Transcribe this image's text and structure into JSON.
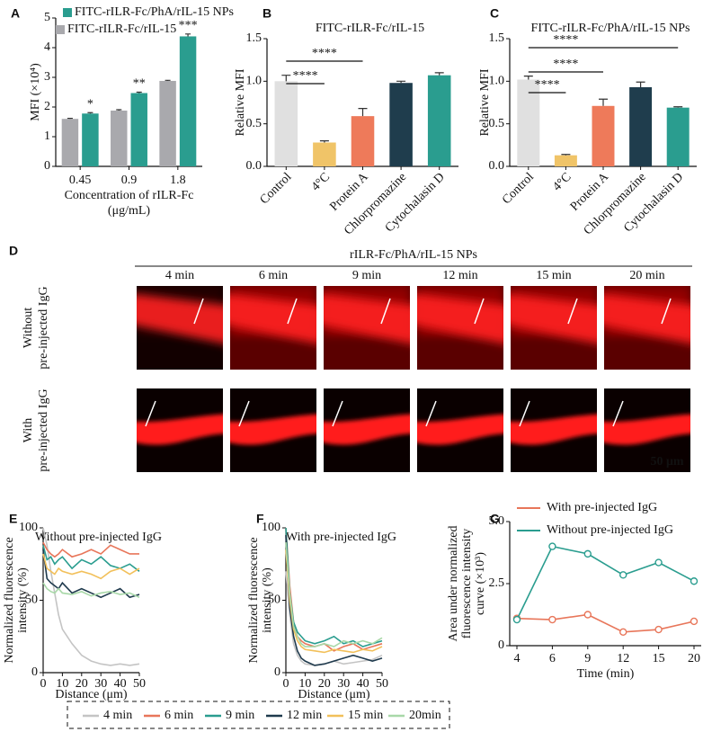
{
  "chart_data": [
    {
      "panel": "A",
      "type": "bar",
      "categories": [
        "0.45",
        "0.9",
        "1.8"
      ],
      "series": [
        {
          "name": "FITC-rILR-Fc/rIL-15",
          "color": "#a9a9ad",
          "values": [
            1.6,
            1.88,
            2.88
          ],
          "errors": [
            0.02,
            0.03,
            0.02
          ]
        },
        {
          "name": "FITC-rILR-Fc/PhA/rIL-15 NPs",
          "color": "#2a9d8f",
          "values": [
            1.78,
            2.47,
            4.38
          ],
          "errors": [
            0.03,
            0.03,
            0.08
          ]
        }
      ],
      "annotations": [
        "*",
        "**",
        "***"
      ],
      "ylabel": [
        "MFI (×10⁴)"
      ],
      "xlabel": [
        "Concentration of rILR-Fc",
        "(μg/mL)"
      ],
      "ylim": [
        0,
        5
      ],
      "yticks": [
        0,
        1,
        2,
        3,
        4,
        5
      ]
    },
    {
      "panel": "B",
      "type": "bar",
      "title": "FITC-rILR-Fc/rIL-15",
      "categories": [
        "Control",
        "4°C",
        "Protein A",
        "Chlorpromazine",
        "Cytochalasin D"
      ],
      "values": [
        1.0,
        0.28,
        0.59,
        0.98,
        1.07
      ],
      "errors": [
        0.07,
        0.02,
        0.09,
        0.02,
        0.03
      ],
      "colors": [
        "#e0e0e0",
        "#f0c468",
        "#ee7a5a",
        "#1f3d4d",
        "#2a9d8f"
      ],
      "annotations": [
        "****",
        "****"
      ],
      "ylabel": [
        "Relative MFI"
      ],
      "ylim": [
        0,
        1.5
      ],
      "yticks": [
        {
          "value": 0,
          "label": "0.0"
        },
        0.5,
        {
          "value": 1,
          "label": "1.0"
        },
        1.5
      ]
    },
    {
      "panel": "C",
      "type": "bar",
      "title": "FITC-rILR-Fc/PhA/rIL-15 NPs",
      "categories": [
        "Control",
        "4°C",
        "Protein A",
        "Chlorpromazine",
        "Cytochalasin D"
      ],
      "values": [
        1.02,
        0.13,
        0.71,
        0.93,
        0.69
      ],
      "errors": [
        0.04,
        0.01,
        0.08,
        0.06,
        0.01
      ],
      "colors": [
        "#e0e0e0",
        "#f0c468",
        "#ee7a5a",
        "#1f3d4d",
        "#2a9d8f"
      ],
      "annotations": [
        "****",
        "****",
        "****"
      ],
      "ylabel": [
        "Relative MFI"
      ],
      "ylim": [
        0,
        1.5
      ],
      "yticks": [
        {
          "value": 0,
          "label": "0.0"
        },
        0.5,
        {
          "value": 1,
          "label": "1.0"
        },
        1.5
      ]
    },
    {
      "panel": "E",
      "type": "line",
      "title": "Without pre-injected IgG",
      "x": [
        0,
        2,
        4,
        6,
        8,
        10,
        15,
        20,
        25,
        30,
        35,
        40,
        45,
        50
      ],
      "series": [
        {
          "name": "4 min",
          "color": "#c4c4c4",
          "values": [
            100,
            88,
            70,
            55,
            40,
            30,
            20,
            12,
            8,
            6,
            5,
            6,
            5,
            6
          ]
        },
        {
          "name": "6 min",
          "color": "#e8765a",
          "values": [
            90,
            85,
            82,
            80,
            82,
            85,
            80,
            82,
            85,
            82,
            88,
            85,
            82,
            82
          ]
        },
        {
          "name": "9 min",
          "color": "#2a9d8f",
          "values": [
            88,
            78,
            80,
            75,
            78,
            80,
            72,
            78,
            75,
            80,
            74,
            72,
            75,
            70
          ]
        },
        {
          "name": "12 min",
          "color": "#1f3a4d",
          "values": [
            85,
            65,
            62,
            60,
            58,
            62,
            55,
            58,
            55,
            52,
            55,
            58,
            52,
            54
          ]
        },
        {
          "name": "15 min",
          "color": "#f2c05a",
          "values": [
            82,
            72,
            70,
            68,
            72,
            70,
            68,
            70,
            68,
            65,
            70,
            72,
            68,
            72
          ]
        },
        {
          "name": "20min",
          "color": "#a8d8a8",
          "values": [
            62,
            58,
            56,
            55,
            58,
            55,
            54,
            56,
            53,
            55,
            56,
            54,
            55,
            52
          ]
        }
      ],
      "ylabel": [
        "Normalized fluorescence",
        "intensity (%)"
      ],
      "xlabel": [
        "Distance (μm)"
      ],
      "xlim": [
        0,
        50
      ],
      "xticks": [
        0,
        10,
        20,
        30,
        40,
        50
      ],
      "ylim": [
        0,
        100
      ],
      "yticks": [
        0,
        50,
        100
      ]
    },
    {
      "panel": "F",
      "type": "line",
      "title": "With pre-injected IgG",
      "x": [
        0,
        2,
        4,
        6,
        8,
        10,
        15,
        20,
        25,
        30,
        35,
        40,
        45,
        50
      ],
      "series": [
        {
          "color": "#c4c4c4",
          "values": [
            70,
            40,
            20,
            12,
            8,
            6,
            5,
            6,
            8,
            6,
            7,
            8,
            9,
            12
          ]
        },
        {
          "color": "#e8765a",
          "values": [
            100,
            60,
            35,
            25,
            22,
            20,
            18,
            20,
            15,
            18,
            20,
            16,
            18,
            20
          ]
        },
        {
          "color": "#2a9d8f",
          "values": [
            100,
            55,
            35,
            28,
            25,
            22,
            20,
            22,
            25,
            20,
            22,
            18,
            20,
            22
          ]
        },
        {
          "color": "#1f3a4d",
          "values": [
            95,
            45,
            25,
            15,
            10,
            8,
            5,
            6,
            8,
            10,
            12,
            10,
            8,
            10
          ]
        },
        {
          "color": "#f2c05a",
          "values": [
            85,
            50,
            30,
            22,
            18,
            16,
            15,
            14,
            16,
            15,
            14,
            16,
            15,
            18
          ]
        },
        {
          "color": "#a8d8a8",
          "values": [
            90,
            55,
            32,
            25,
            20,
            18,
            18,
            20,
            18,
            22,
            20,
            22,
            20,
            24
          ]
        }
      ],
      "ylabel": [
        "Normalized fluorescence",
        "intensity (%)"
      ],
      "xlabel": [
        "Distance (μm)"
      ],
      "xlim": [
        0,
        50
      ],
      "xticks": [
        0,
        10,
        20,
        30,
        40,
        50
      ],
      "ylim": [
        0,
        100
      ],
      "yticks": [
        0,
        50,
        100
      ]
    },
    {
      "panel": "G",
      "type": "line",
      "categories": [
        "4",
        "6",
        "9",
        "12",
        "15",
        "20"
      ],
      "series": [
        {
          "name": "With pre-injected IgG",
          "color": "#e8765a",
          "values": [
            1.1,
            1.05,
            1.25,
            0.55,
            0.65,
            0.98
          ]
        },
        {
          "name": "Without pre-injected IgG",
          "color": "#2a9d8f",
          "values": [
            1.05,
            4.0,
            3.7,
            2.85,
            3.35,
            2.6
          ]
        }
      ],
      "ylabel": [
        "Area under normalized",
        "fluorescence  intensity",
        "curve (×10³)"
      ],
      "xlabel": [
        "Time (min)"
      ],
      "ylim": [
        0,
        5
      ],
      "yticks": [
        0,
        2.5,
        {
          "value": 5,
          "label": "5.0"
        }
      ]
    }
  ],
  "image_panel": {
    "panel": "D",
    "header": "rILR-Fc/PhA/rIL-15 NPs",
    "times": [
      "4 min",
      "6 min",
      "9 min",
      "12 min",
      "15 min",
      "20 min"
    ],
    "rows": [
      [
        "Without",
        "pre-injected IgG"
      ],
      [
        "With",
        "pre-injected IgG"
      ]
    ],
    "scale_bar": "50 μm"
  }
}
